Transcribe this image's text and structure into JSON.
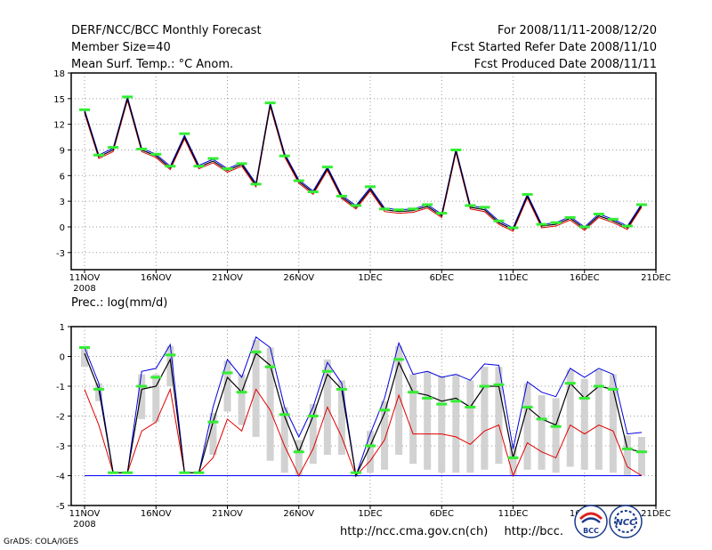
{
  "header": {
    "line1": "DERF/NCC/BCC Monthly Forecast",
    "line2": "Member Size=40",
    "line3": "Mean Surf. Temp.: °C Anom.",
    "right1": "For 2008/11/11-2008/12/20",
    "right2": "Fcst Started Refer Date 2008/11/10",
    "right3": "Fcst Produced Date 2008/11/11"
  },
  "footer": {
    "credit": "GrADS: COLA/IGES",
    "url1": "http://ncc.cma.gov.cn(ch)",
    "url2": "http://bcc.",
    "logo_bcc_text": "BCC",
    "logo_ncc_text": "NCC"
  },
  "colors": {
    "mean": "#000000",
    "upper": "#0000e0",
    "lower": "#e00000",
    "spread": "#d2d2d2",
    "marker": "#33ee33",
    "baseline": "#0000ff",
    "grid": "#999999"
  },
  "chart_data": [
    {
      "type": "line",
      "title": "Mean Surf. Temp.: °C Anom.",
      "ylim": [
        -5,
        18
      ],
      "yticks": [
        "-3",
        "0",
        "3",
        "6",
        "9",
        "12",
        "15",
        "18"
      ],
      "x_tick_labels": [
        "11NOV",
        "16NOV",
        "21NOV",
        "26NOV",
        "1DEC",
        "6DEC",
        "11DEC",
        "16DEC",
        "21DEC"
      ],
      "x_year_label": "2008",
      "x_days": [
        1,
        2,
        3,
        4,
        5,
        6,
        7,
        8,
        9,
        10,
        11,
        12,
        13,
        14,
        15,
        16,
        17,
        18,
        19,
        20,
        21,
        22,
        23,
        24,
        25,
        26,
        27,
        28,
        29,
        30,
        31,
        32,
        33,
        34,
        35,
        36,
        37,
        38,
        39,
        40
      ],
      "series": [
        {
          "name": "ensemble mean",
          "values": [
            13.5,
            8.2,
            9.0,
            15.0,
            9.0,
            8.3,
            6.9,
            10.5,
            7.0,
            7.7,
            6.6,
            7.3,
            4.9,
            14.3,
            8.4,
            5.3,
            4.0,
            6.8,
            3.5,
            2.3,
            4.4,
            2.0,
            1.8,
            1.9,
            2.4,
            1.3,
            8.9,
            2.3,
            2.0,
            0.5,
            -0.3,
            3.6,
            0.1,
            0.3,
            1.0,
            -0.2,
            1.3,
            0.7,
            -0.1,
            2.5
          ]
        },
        {
          "name": "upper",
          "values": [
            13.7,
            8.4,
            9.2,
            15.2,
            9.2,
            8.5,
            7.1,
            10.7,
            7.2,
            7.9,
            6.8,
            7.5,
            5.1,
            14.5,
            8.6,
            5.5,
            4.2,
            7.0,
            3.7,
            2.5,
            4.6,
            2.2,
            2.0,
            2.1,
            2.6,
            1.5,
            9.1,
            2.5,
            2.2,
            0.7,
            -0.1,
            3.8,
            0.3,
            0.5,
            1.2,
            0.0,
            1.5,
            0.9,
            0.1,
            2.7
          ]
        },
        {
          "name": "lower",
          "values": [
            13.3,
            8.0,
            8.8,
            14.8,
            8.8,
            8.1,
            6.7,
            10.3,
            6.8,
            7.5,
            6.4,
            7.1,
            4.7,
            14.1,
            8.2,
            5.1,
            3.8,
            6.6,
            3.3,
            2.1,
            4.2,
            1.8,
            1.6,
            1.7,
            2.2,
            1.1,
            8.7,
            2.1,
            1.8,
            0.3,
            -0.5,
            3.4,
            -0.1,
            0.1,
            0.8,
            -0.4,
            1.1,
            0.5,
            -0.3,
            2.3
          ]
        },
        {
          "name": "markers",
          "values": [
            13.7,
            8.4,
            9.3,
            15.2,
            9.1,
            8.5,
            7.1,
            10.9,
            7.1,
            8.0,
            6.8,
            7.4,
            5.0,
            14.5,
            8.3,
            5.4,
            4.1,
            7.0,
            3.6,
            2.5,
            4.7,
            2.1,
            2.0,
            2.1,
            2.6,
            1.6,
            9.0,
            2.5,
            2.3,
            0.7,
            -0.1,
            3.8,
            0.3,
            0.5,
            1.1,
            0.0,
            1.5,
            0.9,
            0.1,
            2.6
          ]
        }
      ]
    },
    {
      "type": "line",
      "title": "Prec.: log(mm/d)",
      "ylim": [
        -5,
        1
      ],
      "yticks": [
        "-5",
        "-4",
        "-3",
        "-2",
        "-1",
        "0",
        "1"
      ],
      "x_tick_labels": [
        "11NOV",
        "16NOV",
        "21NOV",
        "26NOV",
        "1DEC",
        "6DEC",
        "11DEC",
        "16DEC",
        "21DEC"
      ],
      "x_year_label": "2008",
      "x_days": [
        1,
        2,
        3,
        4,
        5,
        6,
        7,
        8,
        9,
        10,
        11,
        12,
        13,
        14,
        15,
        16,
        17,
        18,
        19,
        20,
        21,
        22,
        23,
        24,
        25,
        26,
        27,
        28,
        29,
        30,
        31,
        32,
        33,
        34,
        35,
        36,
        37,
        38,
        39,
        40
      ],
      "baseline": -4,
      "series": [
        {
          "name": "ensemble mean",
          "values": [
            0.1,
            -1.1,
            -3.9,
            -3.9,
            -1.1,
            -1.0,
            -0.1,
            -3.9,
            -3.9,
            -2.2,
            -0.7,
            -1.2,
            0.1,
            -0.3,
            -2.0,
            -3.2,
            -2.0,
            -0.6,
            -1.1,
            -4.0,
            -3.0,
            -1.9,
            -0.2,
            -1.2,
            -1.3,
            -1.5,
            -1.4,
            -1.7,
            -1.0,
            -1.0,
            -3.4,
            -1.7,
            -2.1,
            -2.3,
            -0.9,
            -1.4,
            -1.0,
            -1.1,
            -3.1,
            -3.2
          ]
        },
        {
          "name": "upper",
          "values": [
            0.3,
            -0.9,
            -3.9,
            -3.9,
            -0.5,
            -0.4,
            0.4,
            -3.9,
            -3.9,
            -1.7,
            -0.1,
            -0.7,
            0.65,
            0.3,
            -1.7,
            -2.7,
            -1.7,
            -0.2,
            -0.9,
            -4.0,
            -2.6,
            -1.4,
            0.45,
            -0.6,
            -0.5,
            -0.7,
            -0.6,
            -0.8,
            -0.25,
            -0.3,
            -3.1,
            -0.85,
            -1.2,
            -1.35,
            -0.4,
            -0.7,
            -0.4,
            -0.6,
            -2.6,
            -2.55
          ]
        },
        {
          "name": "lower",
          "values": [
            -1.1,
            -2.3,
            -3.9,
            -3.9,
            -2.5,
            -2.2,
            -1.1,
            -3.9,
            -3.9,
            -3.4,
            -2.1,
            -2.5,
            -1.1,
            -1.8,
            -3.0,
            -4.0,
            -3.1,
            -1.7,
            -2.7,
            -4.0,
            -3.5,
            -2.8,
            -1.3,
            -2.6,
            -2.6,
            -2.6,
            -2.7,
            -2.95,
            -2.5,
            -2.3,
            -4.0,
            -2.9,
            -3.2,
            -3.4,
            -2.3,
            -2.6,
            -2.3,
            -2.5,
            -3.7,
            -4.0
          ]
        },
        {
          "name": "markers",
          "values": [
            0.3,
            -1.1,
            -3.9,
            -3.9,
            -1.0,
            -0.7,
            0.05,
            -3.9,
            -3.9,
            -2.2,
            -0.55,
            -1.2,
            0.15,
            -0.35,
            -1.95,
            -3.2,
            -2.0,
            -0.5,
            -1.1,
            -3.9,
            -3.0,
            -1.8,
            -0.1,
            -1.2,
            -1.4,
            -1.6,
            -1.5,
            -1.7,
            -1.0,
            -0.95,
            -3.4,
            -1.7,
            -2.1,
            -2.35,
            -0.9,
            -1.4,
            -1.0,
            -1.1,
            -3.1,
            -3.2
          ]
        },
        {
          "name": "spread_high",
          "values": [
            0.25,
            -0.9,
            -3.9,
            -3.9,
            -0.6,
            -0.6,
            0.35,
            -3.9,
            -3.9,
            -1.9,
            -0.15,
            -0.6,
            0.55,
            0.3,
            -1.7,
            -2.8,
            -1.6,
            -0.1,
            -0.8,
            -4.0,
            -2.5,
            -1.5,
            0.35,
            -0.6,
            -0.5,
            -0.65,
            -0.6,
            -0.8,
            -0.35,
            -0.35,
            -3.0,
            -0.9,
            -1.3,
            -1.4,
            -0.45,
            -0.75,
            -0.45,
            -0.6,
            -2.65,
            -2.7
          ]
        },
        {
          "name": "spread_low",
          "values": [
            -0.35,
            -1.5,
            -3.9,
            -3.9,
            -2.1,
            -2.2,
            -1.0,
            -3.9,
            -3.9,
            -3.3,
            -1.85,
            -2.3,
            -2.7,
            -3.5,
            -3.9,
            -4.0,
            -3.6,
            -3.3,
            -3.3,
            -4.0,
            -3.9,
            -3.8,
            -3.3,
            -3.6,
            -3.8,
            -3.9,
            -3.9,
            -3.9,
            -3.8,
            -3.6,
            -4.0,
            -3.8,
            -3.8,
            -3.9,
            -3.7,
            -3.8,
            -3.8,
            -3.9,
            -4.0,
            -4.0
          ]
        }
      ]
    }
  ]
}
